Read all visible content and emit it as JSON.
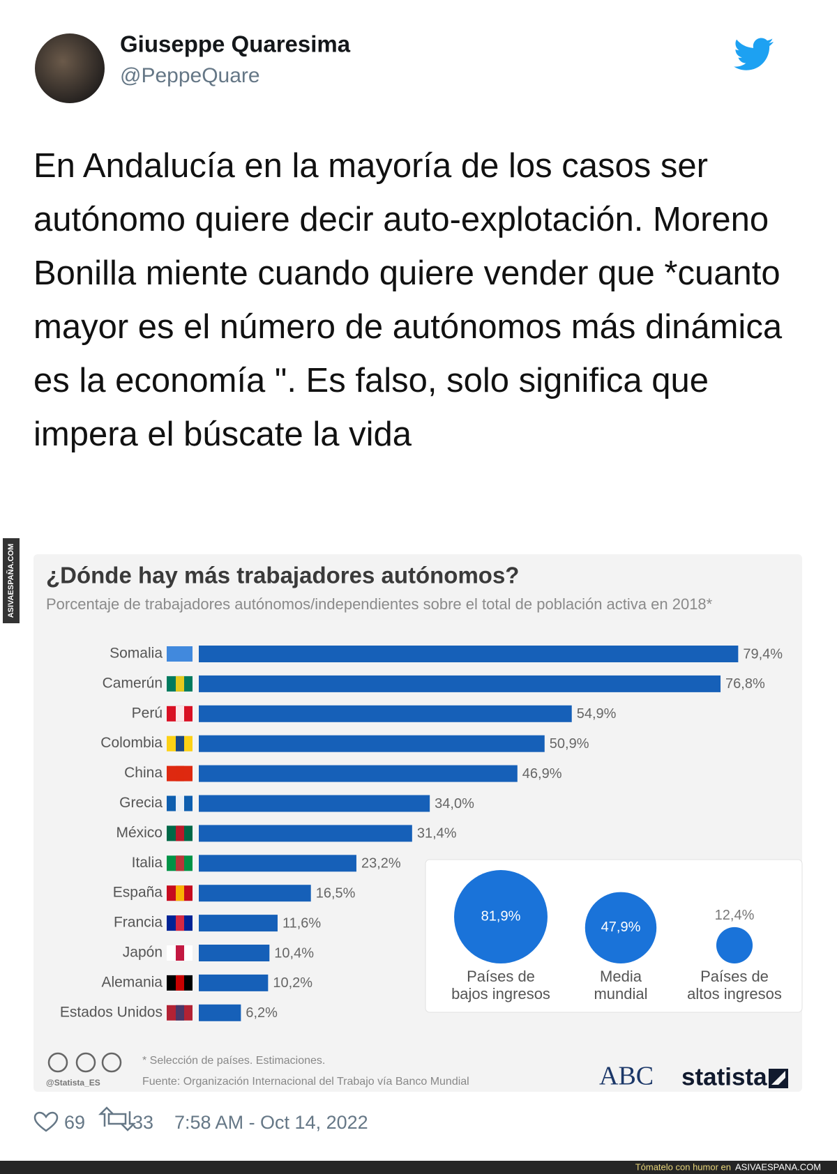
{
  "tweet": {
    "name": "Giuseppe Quaresima",
    "handle": "@PeppeQuare",
    "text": "En Andalucía en la mayoría de los casos ser autónomo quiere decir auto-explotación. Moreno Bonilla miente cuando quiere vender que *cuanto mayor es el número de autónomos más dinámica es la economía \". Es falso, solo significa que impera el búscate la vida",
    "likes": 69,
    "retweets": 33,
    "timestamp": "7:58 AM - Oct 14, 2022"
  },
  "watermark": {
    "side": "ASIVAESPAÑA.COM",
    "footer_prefix": "Tómatelo con humor en",
    "footer_site": "ASIVAESPANA.COM"
  },
  "chart_data": {
    "type": "bar",
    "orientation": "horizontal",
    "title": "¿Dónde hay más trabajadores autónomos?",
    "subtitle": "Porcentaje de trabajadores autónomos/independientes sobre el total de población activa en 2018*",
    "categories": [
      "Somalia",
      "Camerún",
      "Perú",
      "Colombia",
      "China",
      "Grecia",
      "México",
      "Italia",
      "España",
      "Francia",
      "Japón",
      "Alemania",
      "Estados Unidos"
    ],
    "values": [
      79.4,
      76.8,
      54.9,
      50.9,
      46.9,
      34.0,
      31.4,
      23.2,
      16.5,
      11.6,
      10.4,
      10.2,
      6.2
    ],
    "value_labels": [
      "79,4%",
      "76,8%",
      "54,9%",
      "50,9%",
      "46,9%",
      "34,0%",
      "31,4%",
      "23,2%",
      "16,5%",
      "11,6%",
      "10,4%",
      "10,2%",
      "6,2%"
    ],
    "color": "#1660b8",
    "bubbles": [
      {
        "label": [
          "Países de",
          "bajos ingresos"
        ],
        "value": 81.9,
        "value_label": "81,9%"
      },
      {
        "label": [
          "Media",
          "mundial"
        ],
        "value": 47.9,
        "value_label": "47,9%"
      },
      {
        "label": [
          "Países de",
          "altos ingresos"
        ],
        "value": 12.4,
        "value_label": "12,4%"
      }
    ],
    "bubble_color": "#1a73d9",
    "note": "* Selección de países. Estimaciones.",
    "source": "Fuente: Organización Internacional del Trabajo vía Banco Mundial",
    "credit": "@Statista_ES",
    "logos": [
      "ABC",
      "statista"
    ]
  }
}
